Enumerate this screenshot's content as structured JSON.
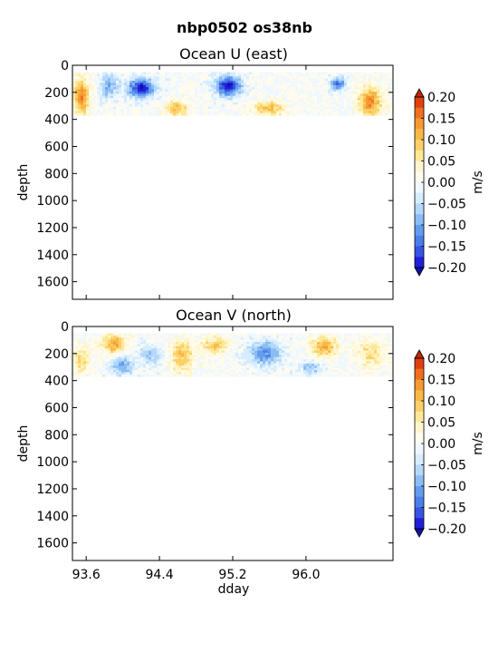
{
  "figure": {
    "suptitle": "nbp0502 os38nb"
  },
  "chart_data": [
    {
      "type": "heatmap",
      "title": "Ocean U (east)",
      "xlabel": "",
      "ylabel": "depth",
      "xlim": [
        93.45,
        96.95
      ],
      "ylim": [
        1730,
        0
      ],
      "x_ticks": [
        93.6,
        94.4,
        95.2,
        96.0
      ],
      "x_tick_labels": [],
      "y_ticks": [
        0,
        200,
        400,
        600,
        800,
        1000,
        1200,
        1400,
        1600
      ],
      "y_tick_labels": [
        "0",
        "200",
        "400",
        "600",
        "800",
        "1000",
        "1200",
        "1400",
        "1600"
      ],
      "data_depth_range": [
        50,
        370
      ],
      "features": [
        {
          "x": 94.2,
          "depth": 170,
          "value": -0.2,
          "spread_x": 0.14,
          "spread_d": 70
        },
        {
          "x": 95.15,
          "depth": 150,
          "value": -0.2,
          "spread_x": 0.14,
          "spread_d": 75
        },
        {
          "x": 96.35,
          "depth": 140,
          "value": -0.15,
          "spread_x": 0.08,
          "spread_d": 45
        },
        {
          "x": 93.55,
          "depth": 230,
          "value": 0.15,
          "spread_x": 0.08,
          "spread_d": 130
        },
        {
          "x": 94.6,
          "depth": 320,
          "value": 0.1,
          "spread_x": 0.12,
          "spread_d": 60
        },
        {
          "x": 95.6,
          "depth": 320,
          "value": 0.1,
          "spread_x": 0.16,
          "spread_d": 55
        },
        {
          "x": 96.7,
          "depth": 270,
          "value": 0.15,
          "spread_x": 0.12,
          "spread_d": 110
        },
        {
          "x": 93.85,
          "depth": 150,
          "value": -0.1,
          "spread_x": 0.1,
          "spread_d": 90
        }
      ],
      "colorbar": {
        "label": "m/s",
        "ticks": [
          0.2,
          0.15,
          0.1,
          0.05,
          0.0,
          -0.05,
          -0.1,
          -0.15,
          -0.2
        ],
        "tick_labels": [
          "0.20",
          "0.15",
          "0.10",
          "0.05",
          "0.00",
          "−0.05",
          "−0.10",
          "−0.15",
          "−0.20"
        ],
        "levels": [
          {
            "from": 0.175,
            "to": 0.2,
            "color": "#e04010"
          },
          {
            "from": 0.15,
            "to": 0.175,
            "color": "#f07020"
          },
          {
            "from": 0.125,
            "to": 0.15,
            "color": "#f59a30"
          },
          {
            "from": 0.1,
            "to": 0.125,
            "color": "#f8b848"
          },
          {
            "from": 0.075,
            "to": 0.1,
            "color": "#fbd068"
          },
          {
            "from": 0.05,
            "to": 0.075,
            "color": "#fde898"
          },
          {
            "from": 0.025,
            "to": 0.05,
            "color": "#fff6d0"
          },
          {
            "from": 0.0,
            "to": 0.025,
            "color": "#fffcee"
          },
          {
            "from": -0.025,
            "to": 0.0,
            "color": "#f0f8ff"
          },
          {
            "from": -0.05,
            "to": -0.025,
            "color": "#d6ecff"
          },
          {
            "from": -0.075,
            "to": -0.05,
            "color": "#b4d8fa"
          },
          {
            "from": -0.1,
            "to": -0.075,
            "color": "#8cbcf4"
          },
          {
            "from": -0.125,
            "to": -0.1,
            "color": "#629cee"
          },
          {
            "from": -0.15,
            "to": -0.125,
            "color": "#4a7ee8"
          },
          {
            "from": -0.175,
            "to": -0.15,
            "color": "#3854e4"
          },
          {
            "from": -0.2,
            "to": -0.175,
            "color": "#2020d8"
          }
        ],
        "over_color": "#c02808",
        "under_color": "#1010b0"
      }
    },
    {
      "type": "heatmap",
      "title": "Ocean V (north)",
      "xlabel": "dday",
      "ylabel": "depth",
      "xlim": [
        93.45,
        96.95
      ],
      "ylim": [
        1730,
        0
      ],
      "x_ticks": [
        93.6,
        94.4,
        95.2,
        96.0
      ],
      "x_tick_labels": [
        "93.6",
        "94.4",
        "95.2",
        "96.0"
      ],
      "y_ticks": [
        0,
        200,
        400,
        600,
        800,
        1000,
        1200,
        1400,
        1600
      ],
      "y_tick_labels": [
        "0",
        "200",
        "400",
        "600",
        "800",
        "1000",
        "1200",
        "1400",
        "1600"
      ],
      "data_depth_range": [
        50,
        370
      ],
      "features": [
        {
          "x": 93.9,
          "depth": 130,
          "value": 0.12,
          "spread_x": 0.12,
          "spread_d": 70
        },
        {
          "x": 94.0,
          "depth": 290,
          "value": -0.1,
          "spread_x": 0.12,
          "spread_d": 70
        },
        {
          "x": 94.3,
          "depth": 210,
          "value": -0.08,
          "spread_x": 0.12,
          "spread_d": 70
        },
        {
          "x": 94.65,
          "depth": 220,
          "value": 0.1,
          "spread_x": 0.12,
          "spread_d": 110
        },
        {
          "x": 95.0,
          "depth": 140,
          "value": 0.1,
          "spread_x": 0.14,
          "spread_d": 60
        },
        {
          "x": 95.55,
          "depth": 200,
          "value": -0.12,
          "spread_x": 0.18,
          "spread_d": 90
        },
        {
          "x": 96.2,
          "depth": 150,
          "value": 0.12,
          "spread_x": 0.14,
          "spread_d": 70
        },
        {
          "x": 96.05,
          "depth": 310,
          "value": -0.08,
          "spread_x": 0.12,
          "spread_d": 50
        },
        {
          "x": 96.7,
          "depth": 200,
          "value": 0.07,
          "spread_x": 0.14,
          "spread_d": 100
        },
        {
          "x": 93.55,
          "depth": 250,
          "value": 0.08,
          "spread_x": 0.08,
          "spread_d": 100
        }
      ],
      "colorbar": {
        "label": "m/s",
        "ticks": [
          0.2,
          0.15,
          0.1,
          0.05,
          0.0,
          -0.05,
          -0.1,
          -0.15,
          -0.2
        ],
        "tick_labels": [
          "0.20",
          "0.15",
          "0.10",
          "0.05",
          "0.00",
          "−0.05",
          "−0.10",
          "−0.15",
          "−0.20"
        ],
        "levels": [
          {
            "from": 0.175,
            "to": 0.2,
            "color": "#e04010"
          },
          {
            "from": 0.15,
            "to": 0.175,
            "color": "#f07020"
          },
          {
            "from": 0.125,
            "to": 0.15,
            "color": "#f59a30"
          },
          {
            "from": 0.1,
            "to": 0.125,
            "color": "#f8b848"
          },
          {
            "from": 0.075,
            "to": 0.1,
            "color": "#fbd068"
          },
          {
            "from": 0.05,
            "to": 0.075,
            "color": "#fde898"
          },
          {
            "from": 0.025,
            "to": 0.05,
            "color": "#fff6d0"
          },
          {
            "from": 0.0,
            "to": 0.025,
            "color": "#fffcee"
          },
          {
            "from": -0.025,
            "to": 0.0,
            "color": "#f0f8ff"
          },
          {
            "from": -0.05,
            "to": -0.025,
            "color": "#d6ecff"
          },
          {
            "from": -0.075,
            "to": -0.05,
            "color": "#b4d8fa"
          },
          {
            "from": -0.1,
            "to": -0.075,
            "color": "#8cbcf4"
          },
          {
            "from": -0.125,
            "to": -0.1,
            "color": "#629cee"
          },
          {
            "from": -0.15,
            "to": -0.125,
            "color": "#4a7ee8"
          },
          {
            "from": -0.175,
            "to": -0.15,
            "color": "#3854e4"
          },
          {
            "from": -0.2,
            "to": -0.175,
            "color": "#2020d8"
          }
        ],
        "over_color": "#c02808",
        "under_color": "#1010b0"
      }
    }
  ]
}
